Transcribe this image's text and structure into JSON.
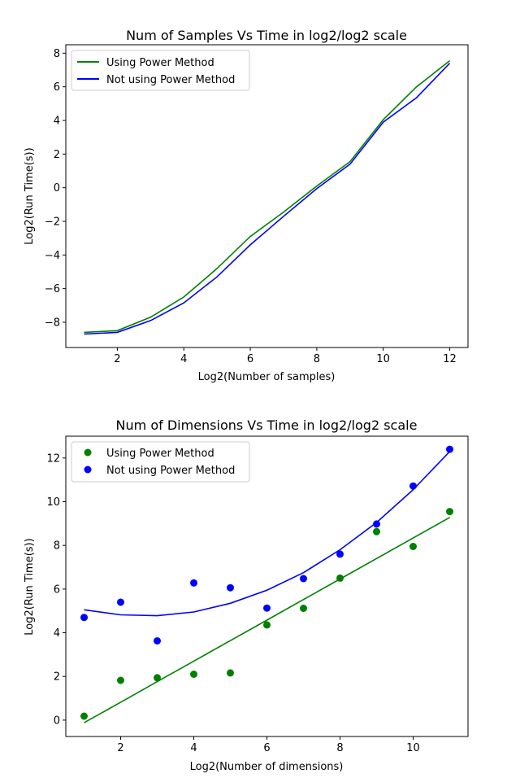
{
  "colors": {
    "green": "#008000",
    "blue": "#0000ff"
  },
  "chart_data": [
    {
      "type": "line",
      "title": "Num of Samples Vs Time in log2/log2 scale",
      "xlabel": "Log2(Number of samples)",
      "ylabel": "Log2(Run Time(s))",
      "xlim": [
        0.45,
        12.55
      ],
      "ylim": [
        -9.5,
        8.5
      ],
      "xticks": [
        2,
        4,
        6,
        8,
        10,
        12
      ],
      "yticks": [
        -8,
        -6,
        -4,
        -2,
        0,
        2,
        4,
        6,
        8
      ],
      "x": [
        1,
        2,
        3,
        4,
        5,
        6,
        7,
        8,
        9,
        10,
        11,
        12
      ],
      "series": [
        {
          "name": "Using Power Method",
          "color": "#008000",
          "values": [
            -8.6,
            -8.5,
            -7.7,
            -6.5,
            -4.8,
            -2.9,
            -1.45,
            0.1,
            1.55,
            4.05,
            6.0,
            7.55
          ]
        },
        {
          "name": "Not using Power Method",
          "color": "#0000ff",
          "values": [
            -8.7,
            -8.6,
            -7.9,
            -6.85,
            -5.3,
            -3.4,
            -1.7,
            -0.05,
            1.4,
            3.9,
            5.35,
            7.4
          ]
        }
      ],
      "legend": "upper-left",
      "grid": false
    },
    {
      "type": "scatter",
      "title": "Num of Dimensions Vs Time in log2/log2 scale",
      "xlabel": "Log2(Number of dimensions)",
      "ylabel": "Log2(Run Time(s))",
      "xlim": [
        0.5,
        11.5
      ],
      "ylim": [
        -0.75,
        13.0
      ],
      "xticks": [
        2,
        4,
        6,
        8,
        10
      ],
      "yticks": [
        0,
        2,
        4,
        6,
        8,
        10,
        12
      ],
      "x": [
        1,
        2,
        3,
        4,
        5,
        6,
        7,
        8,
        9,
        10,
        11
      ],
      "series": [
        {
          "name": "Using Power Method",
          "color": "#008000",
          "points": [
            0.18,
            1.82,
            1.94,
            2.1,
            2.16,
            4.36,
            5.12,
            6.5,
            8.63,
            7.95,
            9.55
          ],
          "fit": [
            -0.12,
            0.82,
            1.76,
            2.7,
            3.64,
            4.58,
            5.52,
            6.46,
            7.4,
            8.34,
            9.28
          ]
        },
        {
          "name": "Not using Power Method",
          "color": "#0000ff",
          "points": [
            4.7,
            5.4,
            3.63,
            6.28,
            6.06,
            5.13,
            6.48,
            7.6,
            8.98,
            10.72,
            12.4
          ],
          "fit": [
            5.05,
            4.82,
            4.78,
            4.95,
            5.35,
            5.95,
            6.75,
            7.8,
            9.05,
            10.55,
            12.3
          ]
        }
      ],
      "legend": "upper-left",
      "grid": false
    }
  ]
}
